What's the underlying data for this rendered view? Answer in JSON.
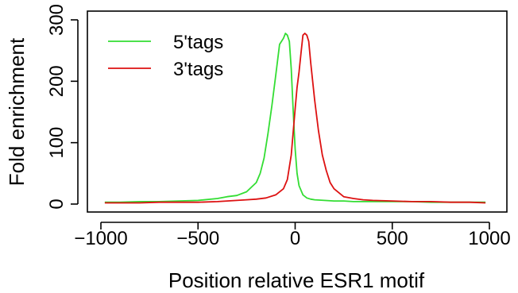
{
  "chart_data": {
    "type": "line",
    "title": "",
    "xlabel": "Position relative ESR1 motif",
    "ylabel": "Fold enrichment",
    "xlim": [
      -1000,
      1000
    ],
    "ylim": [
      0,
      300
    ],
    "xticks": [
      -1000,
      -500,
      0,
      500,
      1000
    ],
    "xtick_labels": [
      "−1000",
      "−500",
      "0",
      "500",
      "1000"
    ],
    "yticks": [
      0,
      100,
      200,
      300
    ],
    "ytick_labels": [
      "0",
      "100",
      "200",
      "300"
    ],
    "grid": false,
    "legend": "top-left",
    "series": [
      {
        "name": "5'tags",
        "color": "#33dd33",
        "x": [
          -980,
          -900,
          -800,
          -700,
          -600,
          -500,
          -400,
          -350,
          -300,
          -250,
          -200,
          -180,
          -160,
          -140,
          -120,
          -100,
          -80,
          -60,
          -50,
          -40,
          -30,
          -20,
          -10,
          0,
          10,
          20,
          40,
          60,
          80,
          100,
          150,
          200,
          250,
          300,
          350,
          400,
          500,
          600,
          700,
          800,
          900,
          980
        ],
        "y": [
          3,
          3,
          4,
          4,
          5,
          6,
          9,
          12,
          14,
          20,
          35,
          50,
          75,
          115,
          160,
          210,
          260,
          270,
          278,
          275,
          265,
          220,
          150,
          90,
          50,
          30,
          15,
          10,
          8,
          7,
          6,
          5,
          5,
          4,
          4,
          4,
          4,
          4,
          3,
          3,
          3,
          3
        ]
      },
      {
        "name": "3'tags",
        "color": "#dd1111",
        "x": [
          -980,
          -900,
          -800,
          -700,
          -600,
          -500,
          -400,
          -350,
          -300,
          -250,
          -200,
          -150,
          -100,
          -60,
          -40,
          -20,
          0,
          10,
          20,
          30,
          40,
          50,
          60,
          70,
          80,
          100,
          120,
          140,
          160,
          180,
          200,
          250,
          300,
          350,
          400,
          500,
          600,
          700,
          800,
          900,
          980
        ],
        "y": [
          2,
          2,
          2,
          3,
          3,
          3,
          4,
          5,
          6,
          7,
          8,
          10,
          15,
          25,
          40,
          80,
          155,
          190,
          215,
          245,
          275,
          278,
          275,
          265,
          230,
          170,
          120,
          80,
          55,
          35,
          25,
          12,
          9,
          7,
          6,
          5,
          4,
          4,
          3,
          3,
          2
        ]
      }
    ]
  }
}
